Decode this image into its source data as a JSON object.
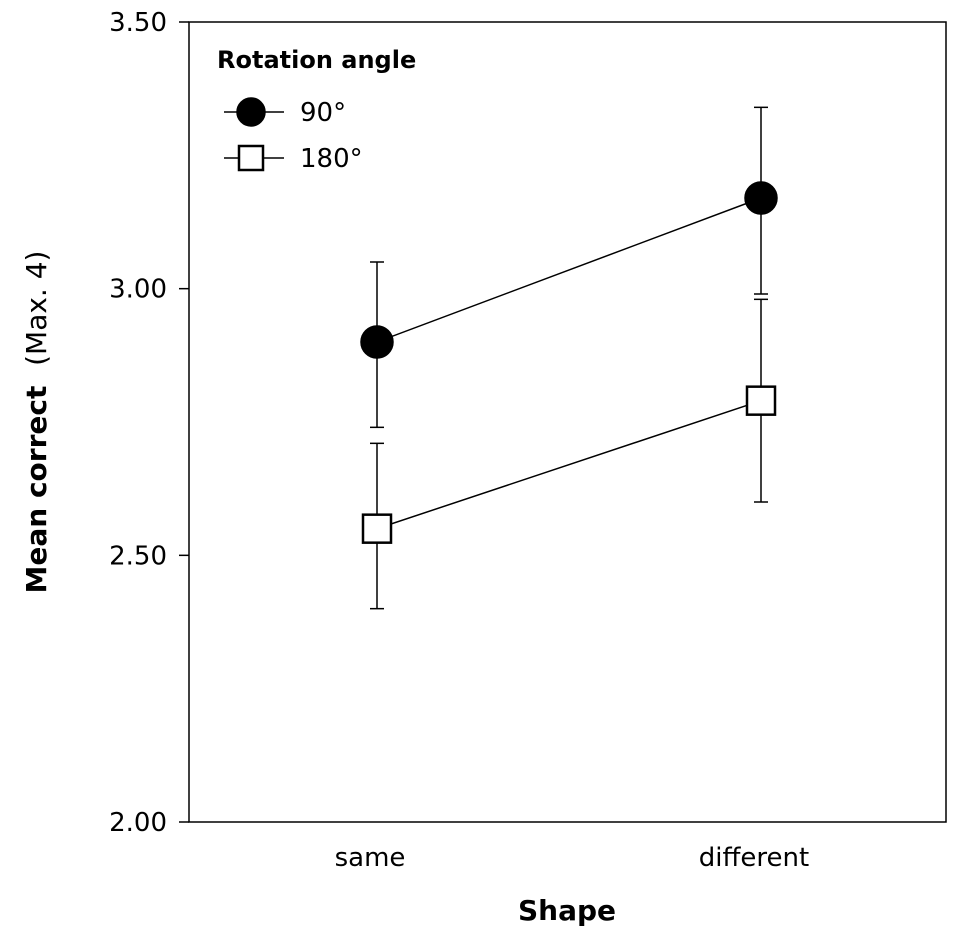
{
  "chart_data": {
    "type": "line",
    "categories": [
      "same",
      "different"
    ],
    "series": [
      {
        "name": "90°",
        "marker": "filled-circle",
        "color": "#000000",
        "values": [
          2.9,
          3.17
        ],
        "error_low": [
          2.74,
          2.99
        ],
        "error_high": [
          3.05,
          3.34
        ]
      },
      {
        "name": "180°",
        "marker": "open-square",
        "color": "#000000",
        "values": [
          2.55,
          2.79
        ],
        "error_low": [
          2.4,
          2.6
        ],
        "error_high": [
          2.71,
          2.98
        ]
      }
    ],
    "legend": {
      "title": "Rotation angle",
      "placement": "top-left"
    },
    "xlabel": "Shape",
    "ylabel_main": "Mean correct",
    "ylabel_sub": "(Max. 4)",
    "ylim": [
      2.0,
      3.5
    ],
    "yticks": [
      {
        "value": 2.0,
        "label": "2.00"
      },
      {
        "value": 2.5,
        "label": "2.50"
      },
      {
        "value": 3.0,
        "label": "3.00"
      },
      {
        "value": 3.5,
        "label": "3.50"
      }
    ],
    "grid": false
  }
}
